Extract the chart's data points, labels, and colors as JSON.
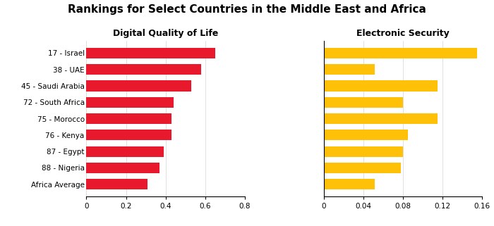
{
  "title": "Rankings for Select Countries in the Middle East and Africa",
  "countries": [
    "17 - Israel",
    "38 - UAE",
    "45 - Saudi Arabia",
    "72 - South Africa",
    "75 - Morocco",
    "76 - Kenya",
    "87 - Egypt",
    "88 - Nigeria",
    "Africa Average"
  ],
  "dql_values": [
    0.65,
    0.58,
    0.53,
    0.44,
    0.43,
    0.43,
    0.39,
    0.37,
    0.31
  ],
  "es_values": [
    0.155,
    0.052,
    0.115,
    0.08,
    0.115,
    0.085,
    0.08,
    0.078,
    0.052
  ],
  "dql_color": "#E8192C",
  "es_color": "#FFC107",
  "dql_title": "Digital Quality of Life",
  "es_title": "Electronic Security",
  "dql_xlim": [
    0,
    0.8
  ],
  "es_xlim": [
    0,
    0.16
  ],
  "dql_xticks": [
    0,
    0.2,
    0.4,
    0.6,
    0.8
  ],
  "es_xticks": [
    0,
    0.04,
    0.08,
    0.12,
    0.16
  ],
  "title_fontsize": 11,
  "subtitle_fontsize": 9,
  "label_fontsize": 7.5,
  "tick_fontsize": 7.5
}
